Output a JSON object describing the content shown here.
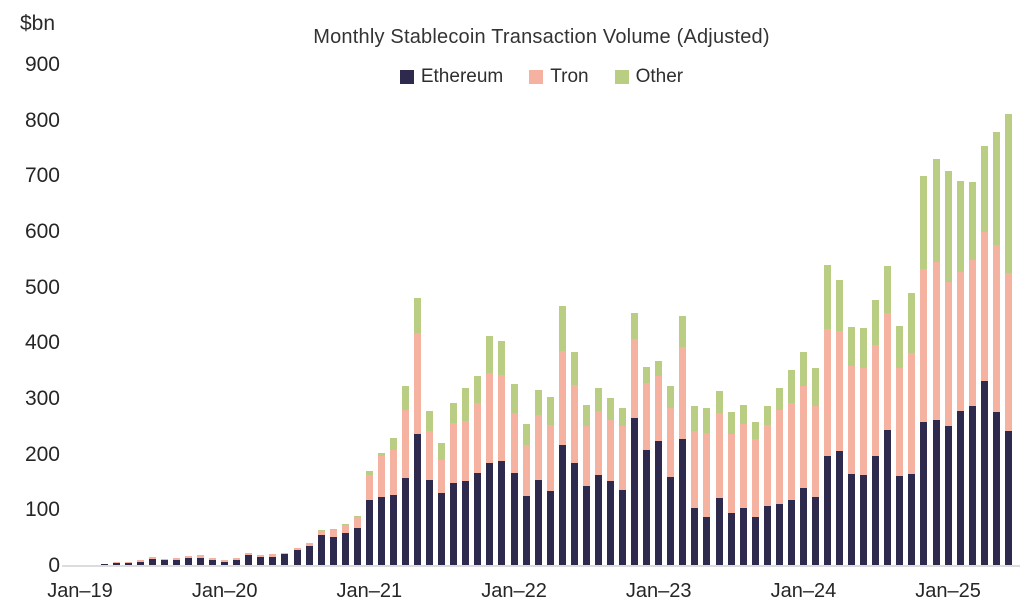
{
  "chart": {
    "title": "Monthly Stablecoin Transaction Volume (Adjusted)",
    "unit_label": "$bn",
    "y_ticks": [
      900,
      800,
      700,
      600,
      500,
      400,
      300,
      200,
      100,
      0
    ],
    "x_ticks": [
      "Jan–19",
      "Jan–20",
      "Jan–21",
      "Jan–22",
      "Jan–23",
      "Jan–24",
      "Jan–25"
    ],
    "colors": {
      "ethereum": "#2d2a4e",
      "tron": "#f5b2a0",
      "other": "#b9ce83",
      "axis_line": "#dcdcdc",
      "text": "#2e2e2e"
    }
  },
  "chart_data": {
    "type": "bar",
    "stacked": true,
    "title": "Monthly Stablecoin Transaction Volume (Adjusted)",
    "xlabel": "",
    "ylabel": "$bn",
    "ylim": [
      0,
      900
    ],
    "grid": false,
    "legend_position": "top",
    "categories": [
      "Jan–19",
      "Feb–19",
      "Mar–19",
      "Apr–19",
      "May–19",
      "Jun–19",
      "Jul–19",
      "Aug–19",
      "Sep–19",
      "Oct–19",
      "Nov–19",
      "Dec–19",
      "Jan–20",
      "Feb–20",
      "Mar–20",
      "Apr–20",
      "May–20",
      "Jun–20",
      "Jul–20",
      "Aug–20",
      "Sep–20",
      "Oct–20",
      "Nov–20",
      "Dec–20",
      "Jan–21",
      "Feb–21",
      "Mar–21",
      "Apr–21",
      "May–21",
      "Jun–21",
      "Jul–21",
      "Aug–21",
      "Sep–21",
      "Oct–21",
      "Nov–21",
      "Dec–21",
      "Jan–22",
      "Feb–22",
      "Mar–22",
      "Apr–22",
      "May–22",
      "Jun–22",
      "Jul–22",
      "Aug–22",
      "Sep–22",
      "Oct–22",
      "Nov–22",
      "Dec–22",
      "Jan–23",
      "Feb–23",
      "Mar–23",
      "Apr–23",
      "May–23",
      "Jun–23",
      "Jul–23",
      "Aug–23",
      "Sep–23",
      "Oct–23",
      "Nov–23",
      "Dec–23",
      "Jan–24",
      "Feb–24",
      "Mar–24",
      "Apr–24",
      "May–24",
      "Jun–24",
      "Jul–24",
      "Aug–24",
      "Sep–24",
      "Oct–24",
      "Nov–24",
      "Dec–24",
      "Jan–25",
      "Feb–25",
      "Mar–25",
      "Apr–25",
      "May–25",
      "Jun–25"
    ],
    "series": [
      {
        "name": "Ethereum",
        "color": "#2d2a4e",
        "values": [
          2,
          2,
          3,
          6,
          6,
          8,
          12,
          11,
          11,
          14,
          15,
          11,
          8,
          10,
          19,
          16,
          17,
          21,
          28,
          36,
          55,
          53,
          59,
          68,
          119,
          124,
          128,
          158,
          237,
          155,
          131,
          149,
          153,
          167,
          185,
          188,
          167,
          125,
          155,
          134,
          218,
          185,
          144,
          164,
          152,
          137,
          266,
          209,
          225,
          160,
          228,
          104,
          88,
          122,
          95,
          105,
          88,
          107,
          112,
          119,
          140,
          124,
          197,
          207,
          165,
          164,
          197,
          245,
          161,
          166,
          258,
          262,
          251,
          278,
          288,
          332,
          277,
          242
        ]
      },
      {
        "name": "Tron",
        "color": "#f5b2a0",
        "values": [
          0,
          0,
          1,
          1,
          1,
          2,
          4,
          2,
          3,
          4,
          5,
          3,
          3,
          4,
          4,
          4,
          4,
          3,
          4,
          6,
          8,
          12,
          15,
          20,
          45,
          73,
          81,
          123,
          182,
          87,
          60,
          108,
          107,
          126,
          161,
          155,
          108,
          92,
          117,
          119,
          168,
          141,
          107,
          114,
          111,
          114,
          141,
          120,
          116,
          124,
          165,
          138,
          151,
          153,
          142,
          151,
          140,
          147,
          169,
          174,
          184,
          163,
          228,
          216,
          194,
          192,
          200,
          210,
          195,
          217,
          275,
          284,
          259,
          250,
          262,
          268,
          299,
          285
        ]
      },
      {
        "name": "Other",
        "color": "#b9ce83",
        "values": [
          0,
          0,
          0,
          0,
          0,
          0,
          0,
          0,
          0,
          0,
          0,
          0,
          0,
          0,
          0,
          0,
          0,
          0,
          0,
          0,
          1,
          1,
          1,
          2,
          6,
          6,
          21,
          42,
          63,
          36,
          30,
          36,
          60,
          49,
          68,
          62,
          52,
          39,
          45,
          51,
          82,
          58,
          39,
          42,
          39,
          33,
          48,
          29,
          27,
          39,
          56,
          45,
          45,
          39,
          39,
          34,
          30,
          33,
          39,
          59,
          60,
          68,
          115,
          90,
          70,
          71,
          81,
          84,
          75,
          108,
          167,
          185,
          200,
          164,
          139,
          154,
          203,
          285
        ]
      }
    ]
  }
}
